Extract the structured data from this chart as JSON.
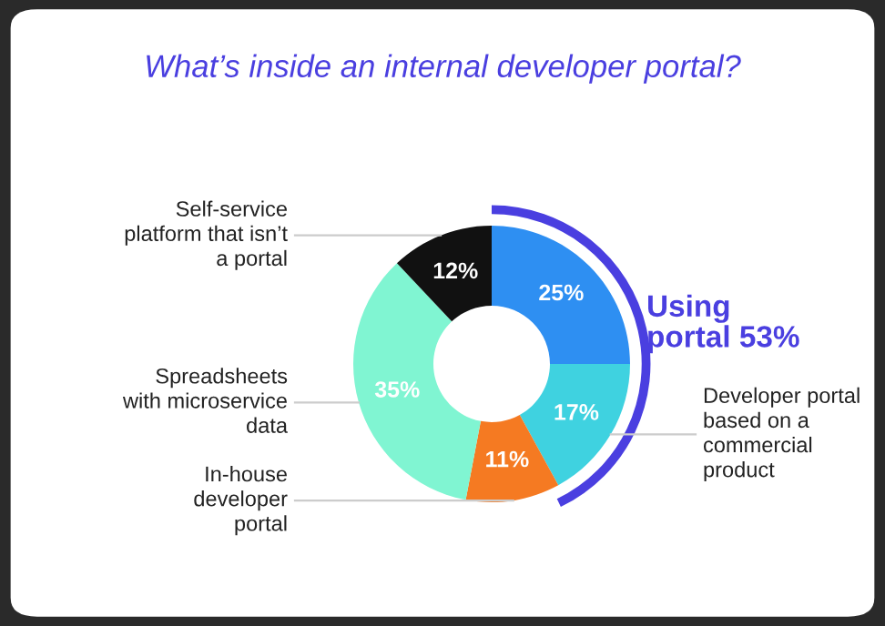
{
  "chart_data": {
    "type": "donut",
    "title": "What’s inside an internal developer portal?",
    "categories": [
      null,
      "Developer portal\nbased on a\ncommercial\nproduct",
      "In-house\ndeveloper\nportal",
      "Spreadsheets\nwith microservice\ndata",
      "Self-service\nplatform that isn’t\na portal"
    ],
    "values": [
      25,
      17,
      11,
      35,
      12
    ],
    "colors": [
      "#2e8ff2",
      "#3fd2e0",
      "#f57a22",
      "#80f5d2",
      "#111111"
    ],
    "value_labels": [
      "25%",
      "17%",
      "11%",
      "35%",
      "12%"
    ],
    "annotations": [
      "Using\nportal 53%"
    ],
    "legend": false
  }
}
